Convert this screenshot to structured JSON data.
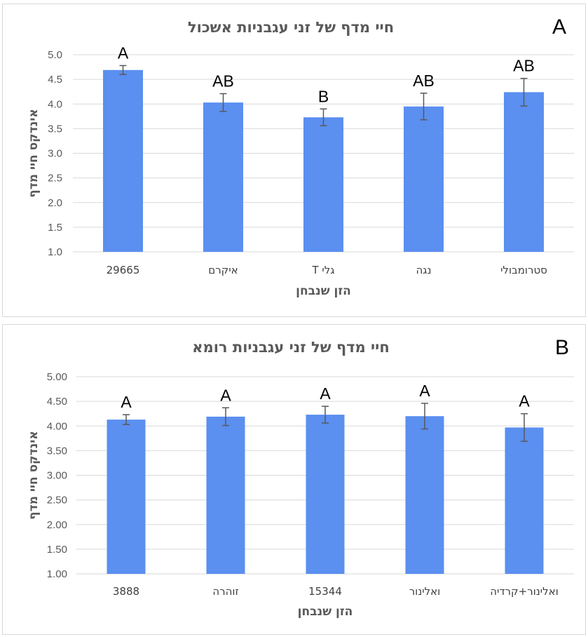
{
  "chart_data": [
    {
      "type": "bar",
      "panel": "A",
      "title": "חיי מדף של זני עגבניות  אשכול",
      "xlabel": "הזן שנבחן",
      "ylabel": "אינדקס חיי מדף",
      "ylim": [
        1.0,
        5.0
      ],
      "yticks": [
        "1.0",
        "1.5",
        "2.0",
        "2.5",
        "3.0",
        "3.5",
        "4.0",
        "4.5",
        "5.0"
      ],
      "categories": [
        "29665",
        "איקרם",
        "גלי T",
        "נגה",
        "סטרומבולי"
      ],
      "values": [
        4.69,
        4.03,
        3.73,
        3.95,
        4.24
      ],
      "errors": [
        0.09,
        0.18,
        0.17,
        0.27,
        0.28
      ],
      "labels": [
        "A",
        "AB",
        "B",
        "AB",
        "AB"
      ],
      "color": "#5b8ff0",
      "grid": true,
      "legend": "none"
    },
    {
      "type": "bar",
      "panel": "B",
      "title": "חיי מדף של זני עגבניות  רומא",
      "xlabel": "הזן שנבחן",
      "ylabel": "אינדקס חיי מדף",
      "ylim": [
        1.0,
        5.0
      ],
      "yticks": [
        "1.00",
        "1.50",
        "2.00",
        "2.50",
        "3.00",
        "3.50",
        "4.00",
        "4.50",
        "5.00"
      ],
      "categories": [
        "3888",
        "זוהרה",
        "15344",
        "ואלינור",
        "ואלינור+קרדיה"
      ],
      "values": [
        4.13,
        4.19,
        4.23,
        4.2,
        3.97
      ],
      "errors": [
        0.1,
        0.18,
        0.17,
        0.26,
        0.28
      ],
      "labels": [
        "A",
        "A",
        "A",
        "A",
        "A"
      ],
      "color": "#5b8ff0",
      "grid": true,
      "legend": "none"
    }
  ]
}
